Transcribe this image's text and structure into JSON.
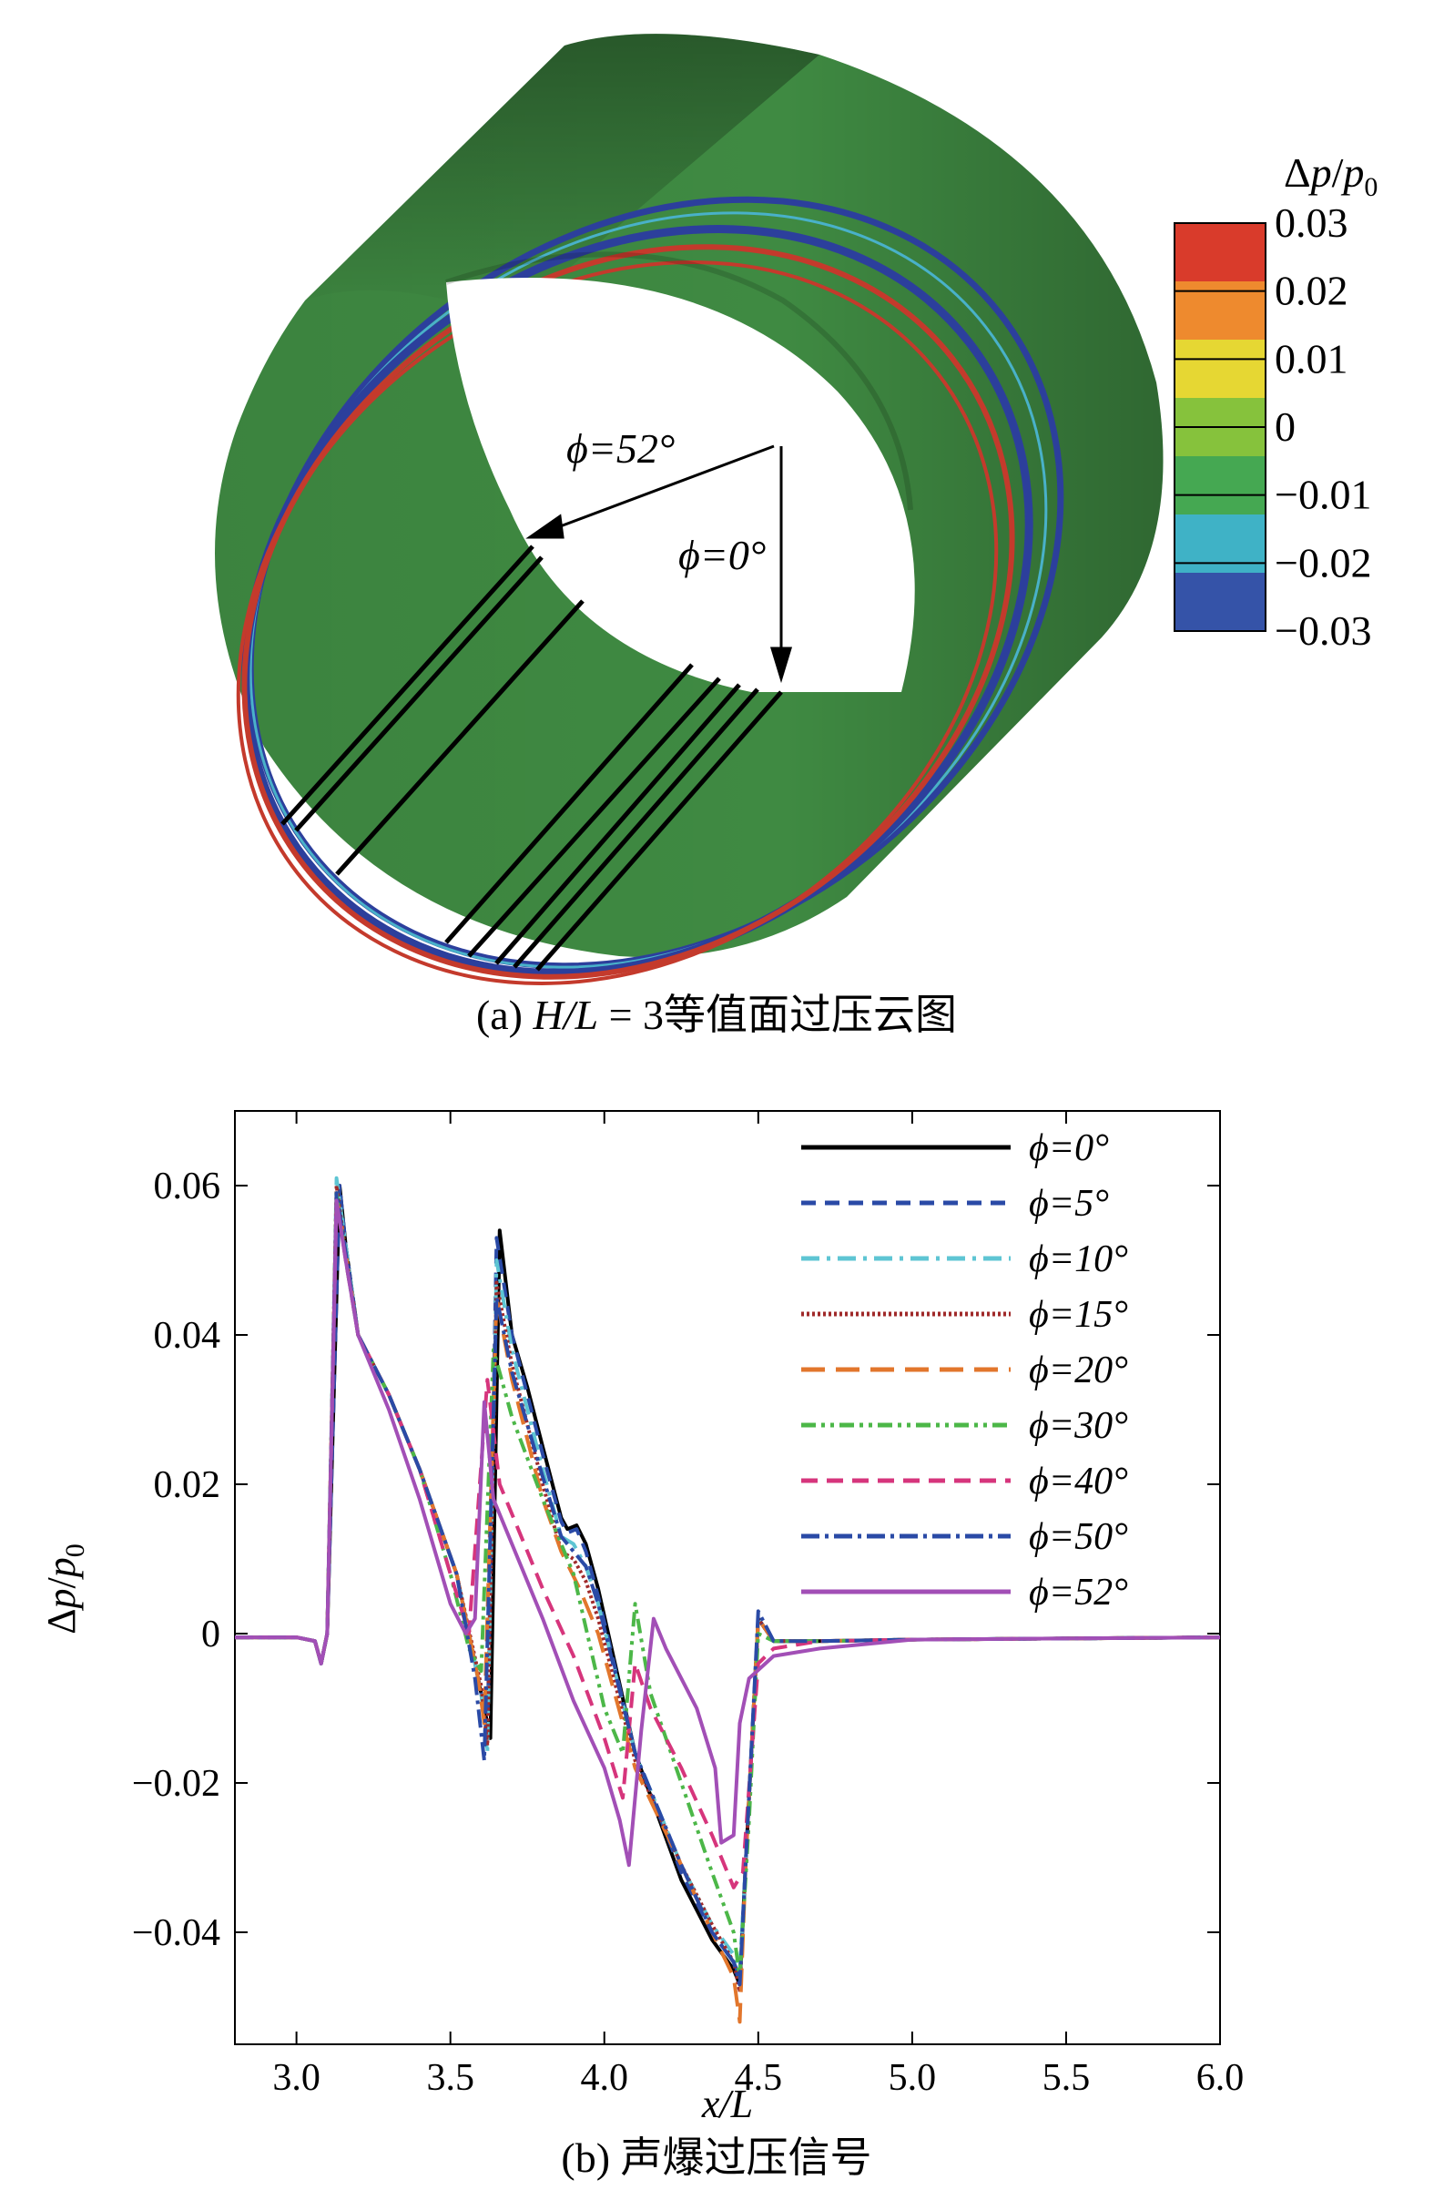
{
  "panel_a": {
    "caption_prefix": "(a)",
    "caption_var": "H/L",
    "caption_rest": " = 3等值面过压云图",
    "angle_52": "ϕ=52°",
    "angle_0": "ϕ=0°",
    "colorbar": {
      "title": "Δp/p0",
      "ticks": [
        "0.03",
        "0.02",
        "0.01",
        "0",
        "−0.01",
        "−0.02",
        "−0.03"
      ],
      "colors": [
        "#d93b2b",
        "#ee8a2e",
        "#e6d733",
        "#86c23c",
        "#45a852",
        "#3fb2c6",
        "#3553a8"
      ]
    },
    "surface_color": "#3f8a42"
  },
  "chart_data": {
    "type": "line",
    "title": "",
    "caption": "(b) 声爆过压信号",
    "xlabel": "x/L",
    "ylabel": "Δp/p0",
    "xlim": [
      2.8,
      6.0
    ],
    "ylim": [
      -0.055,
      0.07
    ],
    "xticks": [
      "3.0",
      "3.5",
      "4.0",
      "4.5",
      "5.0",
      "5.5",
      "6.0"
    ],
    "yticks": [
      "0.06",
      "0.04",
      "0.02",
      "0",
      "−0.02",
      "−0.04"
    ],
    "legend_position": "top-right",
    "series": [
      {
        "name": "ϕ=0°",
        "color": "#000000",
        "dash": "solid",
        "x": [
          2.8,
          3.0,
          3.06,
          3.08,
          3.1,
          3.14,
          3.16,
          3.2,
          3.3,
          3.4,
          3.52,
          3.6,
          3.63,
          3.66,
          3.7,
          3.75,
          3.8,
          3.86,
          3.88,
          3.91,
          3.94,
          3.98,
          4.1,
          4.25,
          4.35,
          4.42,
          4.44,
          4.46,
          4.5,
          4.55,
          4.7,
          5.0,
          6.0
        ],
        "y": [
          -0.0005,
          -0.0005,
          -0.001,
          -0.004,
          0.0,
          0.06,
          0.052,
          0.04,
          0.032,
          0.022,
          0.008,
          -0.008,
          -0.014,
          0.054,
          0.04,
          0.033,
          0.025,
          0.0155,
          0.014,
          0.0145,
          0.012,
          0.006,
          -0.016,
          -0.033,
          -0.041,
          -0.045,
          -0.047,
          -0.03,
          0.002,
          -0.001,
          -0.001,
          -0.0008,
          -0.0005
        ]
      },
      {
        "name": "ϕ=5°",
        "color": "#2a4aa6",
        "dash": "16 10",
        "x": [
          2.8,
          3.0,
          3.06,
          3.08,
          3.1,
          3.14,
          3.16,
          3.2,
          3.3,
          3.4,
          3.52,
          3.6,
          3.62,
          3.65,
          3.7,
          3.75,
          3.8,
          3.86,
          3.88,
          3.91,
          3.94,
          3.98,
          4.1,
          4.25,
          4.35,
          4.42,
          4.44,
          4.46,
          4.5,
          4.55,
          4.7,
          5.0,
          6.0
        ],
        "y": [
          -0.0005,
          -0.0005,
          -0.001,
          -0.004,
          0.0,
          0.06,
          0.052,
          0.04,
          0.032,
          0.022,
          0.008,
          -0.008,
          -0.014,
          0.053,
          0.04,
          0.032,
          0.024,
          0.015,
          0.0135,
          0.014,
          0.011,
          0.005,
          -0.016,
          -0.032,
          -0.04,
          -0.044,
          -0.046,
          -0.03,
          0.002,
          -0.001,
          -0.001,
          -0.0008,
          -0.0005
        ]
      },
      {
        "name": "ϕ=10°",
        "color": "#5ec5d3",
        "dash": "20 8 4 8",
        "x": [
          2.8,
          3.0,
          3.06,
          3.08,
          3.1,
          3.13,
          3.16,
          3.2,
          3.3,
          3.4,
          3.52,
          3.6,
          3.62,
          3.65,
          3.7,
          3.75,
          3.8,
          3.86,
          3.9,
          3.94,
          3.98,
          4.1,
          4.25,
          4.35,
          4.42,
          4.44,
          4.46,
          4.5,
          4.55,
          4.7,
          5.0,
          6.0
        ],
        "y": [
          -0.0005,
          -0.0005,
          -0.001,
          -0.004,
          0.0,
          0.061,
          0.052,
          0.04,
          0.032,
          0.022,
          0.008,
          -0.008,
          -0.016,
          0.05,
          0.038,
          0.03,
          0.022,
          0.013,
          0.012,
          0.009,
          0.004,
          -0.016,
          -0.031,
          -0.039,
          -0.043,
          -0.045,
          -0.03,
          0.002,
          -0.001,
          -0.001,
          -0.0008,
          -0.0005
        ]
      },
      {
        "name": "ϕ=15°",
        "color": "#a02a2a",
        "dash": "3 3",
        "x": [
          2.8,
          3.0,
          3.06,
          3.08,
          3.1,
          3.13,
          3.16,
          3.2,
          3.3,
          3.4,
          3.52,
          3.6,
          3.62,
          3.65,
          3.7,
          3.75,
          3.8,
          3.86,
          3.9,
          3.94,
          3.98,
          4.1,
          4.25,
          4.35,
          4.42,
          4.44,
          4.46,
          4.5,
          4.55,
          4.7,
          5.0,
          6.0
        ],
        "y": [
          -0.0005,
          -0.0005,
          -0.001,
          -0.004,
          0.0,
          0.06,
          0.051,
          0.04,
          0.032,
          0.022,
          0.008,
          -0.007,
          -0.015,
          0.047,
          0.036,
          0.028,
          0.02,
          0.011,
          0.01,
          0.007,
          0.002,
          -0.017,
          -0.031,
          -0.039,
          -0.044,
          -0.048,
          -0.03,
          0.002,
          -0.001,
          -0.001,
          -0.0008,
          -0.0005
        ]
      },
      {
        "name": "ϕ=20°",
        "color": "#e2762c",
        "dash": "26 12",
        "x": [
          2.8,
          3.0,
          3.06,
          3.08,
          3.1,
          3.13,
          3.16,
          3.2,
          3.3,
          3.4,
          3.52,
          3.59,
          3.61,
          3.65,
          3.7,
          3.75,
          3.8,
          3.86,
          3.92,
          3.98,
          4.1,
          4.25,
          4.35,
          4.42,
          4.44,
          4.46,
          4.5,
          4.55,
          4.7,
          5.0,
          6.0
        ],
        "y": [
          -0.0005,
          -0.0005,
          -0.001,
          -0.004,
          0.0,
          0.059,
          0.051,
          0.04,
          0.032,
          0.022,
          0.008,
          -0.006,
          -0.012,
          0.045,
          0.034,
          0.026,
          0.018,
          0.011,
          0.006,
          0.0,
          -0.018,
          -0.031,
          -0.04,
          -0.046,
          -0.052,
          -0.03,
          0.002,
          -0.001,
          -0.001,
          -0.0008,
          -0.0005
        ]
      },
      {
        "name": "ϕ=30°",
        "color": "#4cb748",
        "dash": "16 6 4 6 4 6",
        "x": [
          2.8,
          3.0,
          3.06,
          3.08,
          3.1,
          3.13,
          3.16,
          3.2,
          3.3,
          3.4,
          3.5,
          3.56,
          3.6,
          3.64,
          3.7,
          3.8,
          3.9,
          4.0,
          4.06,
          4.1,
          4.15,
          4.25,
          4.35,
          4.42,
          4.44,
          4.47,
          4.5,
          4.55,
          4.7,
          5.0,
          6.0
        ],
        "y": [
          -0.0005,
          -0.0005,
          -0.001,
          -0.004,
          0.0,
          0.059,
          0.05,
          0.04,
          0.032,
          0.022,
          0.008,
          -0.002,
          -0.005,
          0.038,
          0.029,
          0.018,
          0.008,
          -0.01,
          -0.016,
          0.004,
          -0.008,
          -0.02,
          -0.032,
          -0.04,
          -0.046,
          -0.025,
          0.0,
          -0.001,
          -0.001,
          -0.0008,
          -0.0005
        ]
      },
      {
        "name": "ϕ=40°",
        "color": "#d6357c",
        "dash": "18 10",
        "x": [
          2.8,
          3.0,
          3.06,
          3.08,
          3.1,
          3.13,
          3.16,
          3.2,
          3.3,
          3.4,
          3.5,
          3.56,
          3.62,
          3.66,
          3.72,
          3.8,
          3.9,
          4.0,
          4.06,
          4.1,
          4.15,
          4.25,
          4.35,
          4.42,
          4.45,
          4.48,
          4.5,
          4.55,
          4.7,
          5.0,
          6.0
        ],
        "y": [
          -0.0005,
          -0.0005,
          -0.001,
          -0.004,
          0.0,
          0.058,
          0.05,
          0.04,
          0.032,
          0.022,
          0.008,
          0.0,
          0.034,
          0.02,
          0.014,
          0.006,
          -0.003,
          -0.014,
          -0.022,
          -0.004,
          -0.01,
          -0.018,
          -0.027,
          -0.034,
          -0.032,
          -0.015,
          -0.004,
          -0.002,
          -0.001,
          -0.0008,
          -0.0005
        ]
      },
      {
        "name": "ϕ=50°",
        "color": "#2a4aa6",
        "dash": "20 6 4 6",
        "x": [
          2.8,
          3.0,
          3.06,
          3.08,
          3.1,
          3.13,
          3.16,
          3.2,
          3.3,
          3.4,
          3.52,
          3.58,
          3.61,
          3.65,
          3.7,
          3.75,
          3.8,
          3.86,
          3.9,
          3.94,
          3.98,
          4.1,
          4.25,
          4.35,
          4.42,
          4.44,
          4.46,
          4.5,
          4.55,
          4.7,
          5.0,
          6.0
        ],
        "y": [
          -0.0005,
          -0.0005,
          -0.001,
          -0.004,
          0.0,
          0.059,
          0.051,
          0.04,
          0.032,
          0.022,
          0.008,
          -0.006,
          -0.017,
          0.045,
          0.035,
          0.028,
          0.021,
          0.013,
          0.011,
          0.009,
          0.004,
          -0.016,
          -0.031,
          -0.04,
          -0.044,
          -0.047,
          -0.03,
          0.003,
          -0.001,
          -0.001,
          -0.0008,
          -0.0005
        ]
      },
      {
        "name": "ϕ=52°",
        "color": "#a24fb6",
        "dash": "solid",
        "x": [
          2.8,
          3.0,
          3.06,
          3.08,
          3.1,
          3.13,
          3.16,
          3.2,
          3.3,
          3.4,
          3.5,
          3.55,
          3.58,
          3.61,
          3.64,
          3.7,
          3.8,
          3.9,
          4.0,
          4.05,
          4.08,
          4.12,
          4.16,
          4.2,
          4.3,
          4.36,
          4.38,
          4.42,
          4.44,
          4.47,
          4.55,
          4.7,
          5.0,
          6.0
        ],
        "y": [
          -0.0005,
          -0.0005,
          -0.001,
          -0.004,
          0.0,
          0.058,
          0.05,
          0.04,
          0.03,
          0.018,
          0.004,
          0.0,
          0.002,
          0.031,
          0.018,
          0.012,
          0.002,
          -0.009,
          -0.018,
          -0.025,
          -0.031,
          -0.013,
          0.002,
          -0.002,
          -0.01,
          -0.018,
          -0.028,
          -0.027,
          -0.012,
          -0.006,
          -0.003,
          -0.002,
          -0.0008,
          -0.0005
        ]
      }
    ]
  }
}
